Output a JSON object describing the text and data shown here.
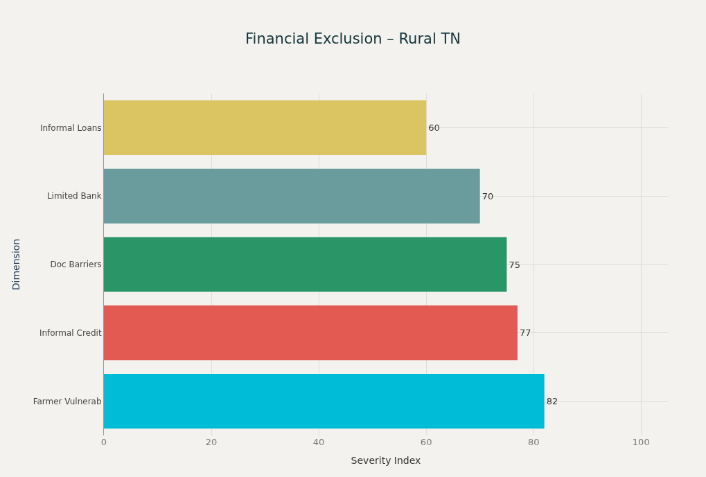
{
  "chart_data": {
    "type": "bar",
    "orientation": "horizontal",
    "title": "Financial Exclusion – Rural TN",
    "xlabel": "Severity Index",
    "ylabel": "Dimension",
    "categories": [
      "Informal Loans",
      "Limited Bank",
      "Doc Barriers",
      "Informal Credit",
      "Farmer Vulnerab"
    ],
    "values": [
      60,
      70,
      75,
      77,
      82
    ],
    "colors": [
      "#dbc462",
      "#6a9b9d",
      "#2a9668",
      "#e25a51",
      "#00bcd6"
    ],
    "xlim": [
      0,
      105
    ],
    "xticks": [
      0,
      20,
      40,
      60,
      80,
      100
    ],
    "grid": true,
    "data_labels": true
  }
}
